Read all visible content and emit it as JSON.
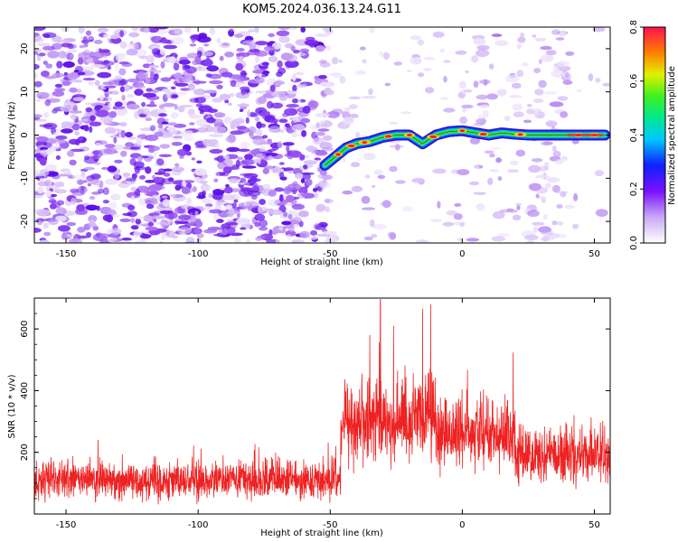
{
  "title": "KOM5.2024.036.13.24.G11",
  "colors": {
    "background_noise": "#7b2cf0",
    "snr_line": "#ee2222"
  },
  "chart_data": [
    {
      "type": "heatmap",
      "xlabel": "Height of straight line (km)",
      "ylabel": "Frequency (Hz)",
      "xlim": [
        -162,
        56
      ],
      "ylim": [
        -25,
        25
      ],
      "xticks": [
        -150,
        -100,
        -50,
        0,
        50
      ],
      "yticks": [
        20,
        10,
        0,
        -10,
        -20
      ],
      "colorbar": {
        "label": "Normalized spectral amplitude",
        "range": [
          0,
          0.8
        ],
        "ticks": [
          "0.0",
          "0.2",
          "0.4",
          "0.6",
          "0.8"
        ]
      },
      "ridge": {
        "x": [
          -52,
          -48,
          -44,
          -40,
          -35,
          -30,
          -25,
          -20,
          -15,
          -10,
          -5,
          0,
          5,
          10,
          15,
          20,
          25,
          30,
          35,
          40,
          45,
          50,
          54
        ],
        "y": [
          -7,
          -5,
          -3,
          -2,
          -1.5,
          -0.5,
          0,
          0,
          -2,
          0,
          0.8,
          1,
          0.5,
          0,
          0.5,
          0.2,
          0,
          0,
          0,
          0,
          0,
          0,
          0
        ]
      }
    },
    {
      "type": "line",
      "xlabel": "Height of straight line (km)",
      "ylabel": "SNR (10 * v/v)",
      "xlim": [
        -162,
        56
      ],
      "ylim": [
        0,
        700
      ],
      "xticks": [
        -150,
        -100,
        -50,
        0,
        50
      ],
      "yticks": [
        600,
        400,
        200
      ],
      "series": [
        {
          "x_range": [
            -162,
            56
          ],
          "segments": [
            {
              "from": -162,
              "to": -46,
              "mean": 110,
              "spread": 55
            },
            {
              "from": -46,
              "to": -10,
              "mean": 300,
              "spread": 120
            },
            {
              "from": -10,
              "to": 20,
              "mean": 260,
              "spread": 100
            },
            {
              "from": 20,
              "to": 56,
              "mean": 190,
              "spread": 80
            }
          ],
          "peaks": [
            {
              "x": -31,
              "y": 695
            },
            {
              "x": -26,
              "y": 610
            },
            {
              "x": -15,
              "y": 665
            },
            {
              "x": -12,
              "y": 680
            },
            {
              "x": -35,
              "y": 580
            }
          ]
        }
      ]
    }
  ]
}
